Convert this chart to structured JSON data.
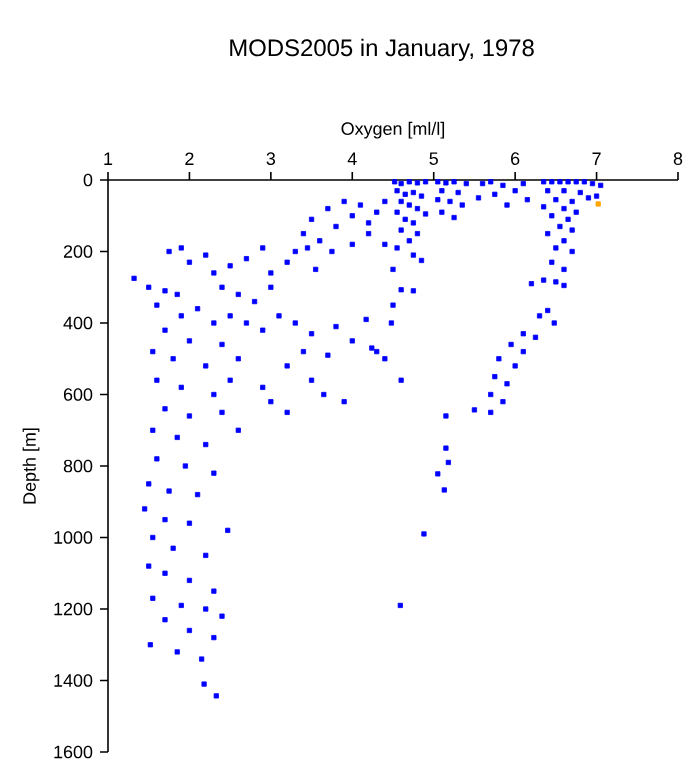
{
  "chart_data": {
    "type": "scatter",
    "title": "MODS2005 in January, 1978",
    "xlabel": "Oxygen [ml/l]",
    "ylabel": "Depth [m]",
    "xlim": [
      1,
      8
    ],
    "xticks": [
      1,
      2,
      3,
      4,
      5,
      6,
      7,
      8
    ],
    "ylim": [
      1600,
      0
    ],
    "yticks": [
      0,
      200,
      400,
      600,
      800,
      1000,
      1200,
      1400,
      1600
    ],
    "marker": "square",
    "series": [
      {
        "color": "#0000ff",
        "x": [
          4.52,
          4.6,
          4.7,
          4.8,
          4.9,
          4.55,
          4.65,
          4.75,
          4.85,
          4.6,
          4.7,
          4.8,
          4.55,
          4.9,
          4.65,
          4.75,
          4.6,
          4.8,
          4.7,
          4.55,
          4.75,
          4.85,
          5.05,
          5.15,
          5.25,
          5.4,
          5.1,
          5.3,
          5.05,
          5.2,
          5.35,
          5.1,
          5.25,
          5.6,
          5.7,
          5.85,
          6.0,
          6.1,
          5.55,
          5.75,
          6.15,
          5.9,
          6.35,
          6.45,
          6.55,
          6.65,
          6.75,
          6.85,
          6.95,
          7.05,
          6.4,
          6.6,
          6.8,
          6.5,
          6.7,
          6.9,
          7.0,
          6.35,
          6.6,
          6.75,
          6.45,
          6.65,
          6.55,
          6.7,
          6.4,
          6.6,
          6.5,
          6.7,
          6.45,
          6.6,
          6.2,
          6.35,
          6.5,
          6.6,
          6.4,
          6.48,
          6.3,
          6.1,
          6.25,
          5.95,
          6.1,
          5.8,
          6.0,
          5.75,
          5.9,
          5.7,
          5.85,
          5.5,
          5.7,
          5.15,
          5.15,
          5.18,
          5.05,
          5.13,
          4.88,
          4.2,
          4.4,
          4.5,
          4.6,
          4.75,
          4.5,
          4.48,
          4.17,
          4.24,
          4.4,
          4.6,
          4.59,
          3.3,
          3.4,
          3.5,
          3.6,
          3.7,
          3.8,
          3.9,
          4.0,
          4.1,
          4.2,
          4.3,
          4.4,
          3.45,
          3.75,
          4.0,
          3.55,
          3.2,
          1.75,
          1.9,
          2.0,
          2.2,
          2.3,
          2.5,
          2.7,
          2.9,
          3.0,
          2.4,
          2.6,
          2.8,
          3.0,
          2.5,
          2.7,
          2.9,
          3.1,
          3.3,
          3.5,
          3.8,
          4.0,
          4.3,
          3.4,
          3.7,
          2.9,
          3.0,
          3.2,
          3.2,
          3.5,
          3.65,
          3.9,
          1.32,
          1.5,
          1.7,
          1.85,
          1.6,
          1.9,
          2.1,
          2.3,
          1.7,
          2.0,
          2.4,
          1.55,
          1.8,
          2.2,
          2.6,
          1.6,
          1.9,
          2.3,
          2.5,
          1.7,
          2.0,
          2.4,
          1.55,
          1.85,
          2.2,
          2.6,
          1.6,
          1.95,
          2.3,
          1.5,
          1.75,
          2.1,
          1.45,
          1.7,
          2.0,
          2.47,
          1.55,
          1.8,
          2.2,
          1.5,
          1.7,
          2.0,
          2.3,
          1.55,
          1.9,
          2.2,
          2.4,
          1.7,
          2.0,
          2.3,
          1.52,
          1.85,
          2.15,
          2.18,
          2.33
        ],
        "values": [
          5,
          10,
          5,
          8,
          5,
          30,
          40,
          35,
          45,
          60,
          70,
          80,
          90,
          95,
          110,
          120,
          140,
          150,
          170,
          190,
          210,
          225,
          5,
          8,
          5,
          10,
          30,
          35,
          55,
          60,
          70,
          90,
          105,
          10,
          5,
          15,
          30,
          10,
          50,
          40,
          55,
          70,
          5,
          5,
          5,
          5,
          5,
          5,
          10,
          15,
          30,
          30,
          35,
          55,
          60,
          50,
          45,
          75,
          80,
          90,
          100,
          110,
          130,
          140,
          150,
          170,
          190,
          200,
          230,
          250,
          290,
          280,
          285,
          295,
          365,
          400,
          380,
          430,
          440,
          460,
          480,
          500,
          520,
          550,
          570,
          600,
          620,
          643,
          650,
          660,
          750,
          790,
          822,
          867,
          990,
          150,
          180,
          250,
          307,
          310,
          350,
          400,
          390,
          470,
          500,
          560,
          1190,
          200,
          150,
          110,
          170,
          80,
          130,
          60,
          100,
          70,
          120,
          90,
          60,
          190,
          200,
          180,
          250,
          230,
          200,
          190,
          230,
          210,
          260,
          240,
          220,
          190,
          260,
          300,
          320,
          340,
          300,
          380,
          400,
          420,
          380,
          400,
          430,
          410,
          450,
          480,
          480,
          490,
          580,
          620,
          650,
          520,
          560,
          600,
          620,
          275,
          300,
          310,
          320,
          350,
          380,
          360,
          400,
          420,
          450,
          460,
          480,
          500,
          520,
          500,
          560,
          580,
          600,
          560,
          640,
          660,
          650,
          700,
          720,
          740,
          700,
          780,
          800,
          820,
          850,
          870,
          880,
          920,
          950,
          960,
          980,
          1000,
          1030,
          1050,
          1080,
          1100,
          1120,
          1150,
          1170,
          1190,
          1200,
          1220,
          1230,
          1260,
          1280,
          1300,
          1320,
          1340,
          1410,
          1443
        ]
      },
      {
        "color": "#ffa500",
        "x": [
          7.02
        ],
        "values": [
          67
        ]
      }
    ]
  }
}
